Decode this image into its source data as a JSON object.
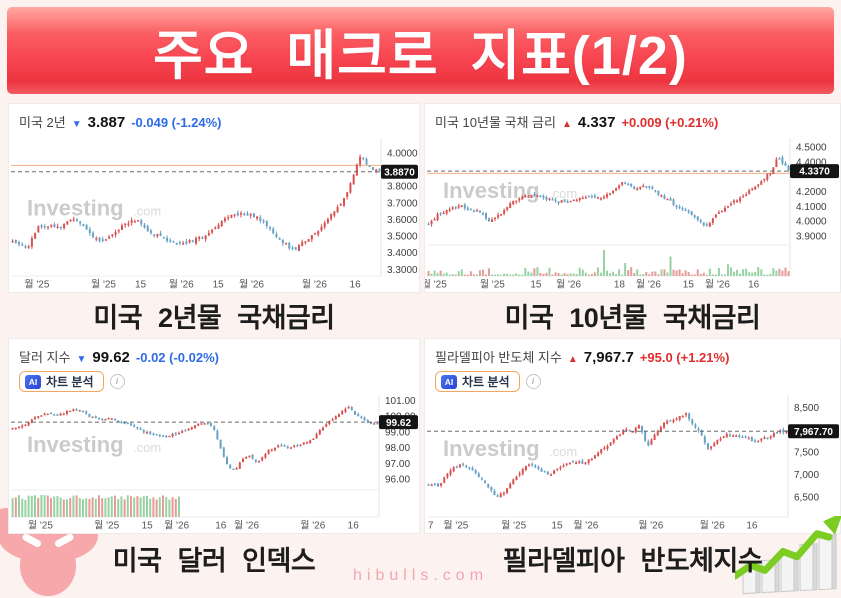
{
  "page": {
    "title": "주요 매크로 지표(1/2)",
    "footer": "hibulls.com"
  },
  "ai_button": {
    "badge": "AI",
    "label": "차트 분석",
    "info_glyph": "i"
  },
  "captions": [
    "미국 2년물 국채금리",
    "미국 10년물 국채금리",
    "미국 달러 인덱스",
    "필라델피아 반도체지수"
  ],
  "colors": {
    "up": "#d8504f",
    "down": "#67a1c5",
    "up_text": "#e02d2d",
    "down_text": "#2e6be6",
    "vol_up": "#97d2a2",
    "vol_down": "#e59b97",
    "badge_bg": "#141414",
    "price_line": "#6b6b6b",
    "ref_line": "#f4b183",
    "banner_red": "#f84853",
    "footer_pink": "#f3a6aa"
  },
  "chart_data": [
    {
      "type": "candlestick",
      "name": "us-2y-yield",
      "title": "미국 2년",
      "arrow": "▼",
      "direction": "down",
      "last_label": "3.887",
      "change": "-0.049 (-1.24%)",
      "last": 3.887,
      "badge": "3.8870",
      "ref": 3.925,
      "watermark": "Investing",
      "watermark2": ".com",
      "y_min": 3.26,
      "y_max": 4.09,
      "y_ticks": [
        {
          "v": 4.0,
          "label": "4.0000"
        },
        {
          "v": 3.8,
          "label": "3.8000"
        },
        {
          "v": 3.7,
          "label": "3.7000"
        },
        {
          "v": 3.6,
          "label": "3.6000"
        },
        {
          "v": 3.5,
          "label": "3.5000"
        },
        {
          "v": 3.4,
          "label": "3.4000"
        },
        {
          "v": 3.3,
          "label": "3.3000"
        }
      ],
      "x_ticks": [
        {
          "t": 0.07,
          "label": "월 '25"
        },
        {
          "t": 0.25,
          "label": "월 '25"
        },
        {
          "t": 0.35,
          "label": "15"
        },
        {
          "t": 0.46,
          "label": "월 '26"
        },
        {
          "t": 0.56,
          "label": "15"
        },
        {
          "t": 0.65,
          "label": "월 '26"
        },
        {
          "t": 0.82,
          "label": "월 '26"
        },
        {
          "t": 0.93,
          "label": "16"
        }
      ],
      "trend": [
        [
          0,
          3.47
        ],
        [
          0.04,
          3.43
        ],
        [
          0.07,
          3.55
        ],
        [
          0.1,
          3.57
        ],
        [
          0.13,
          3.55
        ],
        [
          0.16,
          3.6
        ],
        [
          0.19,
          3.57
        ],
        [
          0.22,
          3.49
        ],
        [
          0.25,
          3.47
        ],
        [
          0.28,
          3.53
        ],
        [
          0.31,
          3.58
        ],
        [
          0.34,
          3.6
        ],
        [
          0.37,
          3.53
        ],
        [
          0.41,
          3.49
        ],
        [
          0.45,
          3.45
        ],
        [
          0.49,
          3.47
        ],
        [
          0.53,
          3.51
        ],
        [
          0.56,
          3.57
        ],
        [
          0.59,
          3.62
        ],
        [
          0.63,
          3.64
        ],
        [
          0.66,
          3.62
        ],
        [
          0.69,
          3.57
        ],
        [
          0.72,
          3.5
        ],
        [
          0.75,
          3.44
        ],
        [
          0.77,
          3.42
        ],
        [
          0.8,
          3.48
        ],
        [
          0.83,
          3.53
        ],
        [
          0.86,
          3.6
        ],
        [
          0.89,
          3.68
        ],
        [
          0.91,
          3.74
        ],
        [
          0.93,
          3.88
        ],
        [
          0.95,
          3.99
        ],
        [
          0.97,
          3.92
        ],
        [
          1,
          3.89
        ]
      ],
      "axis_w": 38,
      "volume": "none",
      "volume_h": 0,
      "seed": 11,
      "n": 115,
      "amp": 0.022,
      "wm": 0.56
    },
    {
      "type": "candlestick",
      "name": "us-10y-yield",
      "title": "미국 10년물 국채 금리",
      "arrow": "▲",
      "direction": "up",
      "last_label": "4.337",
      "change": "+0.009 (+0.21%)",
      "last": 4.337,
      "badge": "4.3370",
      "ref": 4.322,
      "watermark": "Investing",
      "watermark2": ".com",
      "y_min": 3.84,
      "y_max": 4.56,
      "y_ticks": [
        {
          "v": 4.5,
          "label": "4.5000"
        },
        {
          "v": 4.4,
          "label": "4.4000"
        },
        {
          "v": 4.2,
          "label": "4.2000"
        },
        {
          "v": 4.1,
          "label": "4.1000"
        },
        {
          "v": 4.0,
          "label": "4.0000"
        },
        {
          "v": 3.9,
          "label": "3.9000"
        }
      ],
      "x_ticks": [
        {
          "t": 0.02,
          "label": "월 '25"
        },
        {
          "t": 0.18,
          "label": "월 '25"
        },
        {
          "t": 0.3,
          "label": "15"
        },
        {
          "t": 0.39,
          "label": "월 '26"
        },
        {
          "t": 0.53,
          "label": "18"
        },
        {
          "t": 0.61,
          "label": "월 '26"
        },
        {
          "t": 0.72,
          "label": "15"
        },
        {
          "t": 0.8,
          "label": "월 '26"
        },
        {
          "t": 0.9,
          "label": "16"
        }
      ],
      "trend": [
        [
          0,
          3.99
        ],
        [
          0.03,
          4.05
        ],
        [
          0.06,
          4.08
        ],
        [
          0.09,
          4.1
        ],
        [
          0.12,
          4.08
        ],
        [
          0.15,
          4.05
        ],
        [
          0.17,
          4.0
        ],
        [
          0.2,
          4.05
        ],
        [
          0.23,
          4.12
        ],
        [
          0.26,
          4.17
        ],
        [
          0.3,
          4.18
        ],
        [
          0.33,
          4.15
        ],
        [
          0.36,
          4.13
        ],
        [
          0.4,
          4.14
        ],
        [
          0.44,
          4.17
        ],
        [
          0.48,
          4.16
        ],
        [
          0.51,
          4.2
        ],
        [
          0.54,
          4.26
        ],
        [
          0.56,
          4.24
        ],
        [
          0.58,
          4.21
        ],
        [
          0.6,
          4.25
        ],
        [
          0.63,
          4.2
        ],
        [
          0.66,
          4.15
        ],
        [
          0.69,
          4.1
        ],
        [
          0.72,
          4.07
        ],
        [
          0.75,
          4.0
        ],
        [
          0.77,
          3.96
        ],
        [
          0.8,
          4.05
        ],
        [
          0.83,
          4.1
        ],
        [
          0.86,
          4.15
        ],
        [
          0.89,
          4.2
        ],
        [
          0.92,
          4.26
        ],
        [
          0.95,
          4.33
        ],
        [
          0.97,
          4.43
        ],
        [
          1,
          4.34
        ]
      ],
      "axis_w": 50,
      "volume": "full",
      "volume_h": 26,
      "v_spikes": [
        {
          "t": 0.49,
          "f": 1.0
        },
        {
          "t": 0.55,
          "f": 0.5
        },
        {
          "t": 0.67,
          "f": 0.75
        },
        {
          "t": 0.83,
          "f": 0.45
        }
      ],
      "seed": 23,
      "n": 120,
      "amp": 0.02,
      "wm": 0.56
    },
    {
      "type": "candlestick",
      "name": "dollar-index",
      "title": "달러 지수",
      "arrow": "▼",
      "direction": "down",
      "last_label": "99.62",
      "change": "-0.02 (-0.02%)",
      "last": 99.62,
      "badge": "99.62",
      "ref": null,
      "watermark": "Investing",
      "watermark2": ".com",
      "y_min": 95.3,
      "y_max": 101.35,
      "y_ticks": [
        {
          "v": 101.0,
          "label": "101.00"
        },
        {
          "v": 100.0,
          "label": "100.00"
        },
        {
          "v": 99.0,
          "label": "99.00"
        },
        {
          "v": 98.0,
          "label": "98.00"
        },
        {
          "v": 97.0,
          "label": "97.00"
        },
        {
          "v": 96.0,
          "label": "96.00"
        }
      ],
      "x_ticks": [
        {
          "t": 0.08,
          "label": "월 '25"
        },
        {
          "t": 0.26,
          "label": "월 '25"
        },
        {
          "t": 0.37,
          "label": "15"
        },
        {
          "t": 0.45,
          "label": "월 '26"
        },
        {
          "t": 0.57,
          "label": "16"
        },
        {
          "t": 0.64,
          "label": "월 '26"
        },
        {
          "t": 0.82,
          "label": "월 '26"
        },
        {
          "t": 0.93,
          "label": "16"
        }
      ],
      "trend": [
        [
          0,
          99.2
        ],
        [
          0.03,
          99.4
        ],
        [
          0.06,
          99.9
        ],
        [
          0.09,
          100.2
        ],
        [
          0.12,
          100.0
        ],
        [
          0.15,
          100.3
        ],
        [
          0.18,
          100.5
        ],
        [
          0.21,
          100.0
        ],
        [
          0.24,
          99.8
        ],
        [
          0.27,
          99.9
        ],
        [
          0.3,
          99.6
        ],
        [
          0.33,
          99.4
        ],
        [
          0.36,
          99.0
        ],
        [
          0.39,
          98.8
        ],
        [
          0.42,
          98.7
        ],
        [
          0.45,
          98.9
        ],
        [
          0.48,
          99.2
        ],
        [
          0.51,
          99.5
        ],
        [
          0.53,
          99.6
        ],
        [
          0.55,
          99.3
        ],
        [
          0.57,
          98.0
        ],
        [
          0.59,
          96.8
        ],
        [
          0.61,
          96.5
        ],
        [
          0.63,
          97.3
        ],
        [
          0.65,
          97.5
        ],
        [
          0.67,
          97.0
        ],
        [
          0.7,
          97.8
        ],
        [
          0.73,
          98.1
        ],
        [
          0.76,
          98.0
        ],
        [
          0.79,
          98.2
        ],
        [
          0.82,
          98.5
        ],
        [
          0.85,
          99.3
        ],
        [
          0.88,
          99.9
        ],
        [
          0.9,
          100.2
        ],
        [
          0.92,
          100.6
        ],
        [
          0.94,
          100.1
        ],
        [
          0.96,
          99.8
        ],
        [
          0.98,
          99.5
        ],
        [
          1,
          99.6
        ]
      ],
      "axis_w": 40,
      "volume": "partial",
      "volume_h": 22,
      "volume_span": 0.46,
      "seed": 37,
      "n": 115,
      "amp": 0.12,
      "wm": 0.6
    },
    {
      "type": "candlestick",
      "name": "philadelphia-semiconductor-index",
      "title": "필라델피아 반도체 지수",
      "arrow": "▲",
      "direction": "up",
      "last_label": "7,967.7",
      "change": "+95.0 (+1.21%)",
      "last": 7967.7,
      "badge": "7,967.70",
      "ref": null,
      "watermark": "Investing",
      "watermark2": ".com",
      "y_min": 6050,
      "y_max": 8780,
      "y_ticks": [
        {
          "v": 8500,
          "label": "8,500"
        },
        {
          "v": 7500,
          "label": "7,500"
        },
        {
          "v": 7000,
          "label": "7,000"
        },
        {
          "v": 6500,
          "label": "6,500"
        }
      ],
      "x_ticks": [
        {
          "t": 0.01,
          "label": "7"
        },
        {
          "t": 0.08,
          "label": "월 '25"
        },
        {
          "t": 0.24,
          "label": "월 '25"
        },
        {
          "t": 0.36,
          "label": "15"
        },
        {
          "t": 0.44,
          "label": "월 '26"
        },
        {
          "t": 0.62,
          "label": "월 '26"
        },
        {
          "t": 0.79,
          "label": "월 '26"
        },
        {
          "t": 0.9,
          "label": "16"
        }
      ],
      "trend": [
        [
          0,
          6800
        ],
        [
          0.03,
          6750
        ],
        [
          0.06,
          7100
        ],
        [
          0.09,
          7250
        ],
        [
          0.12,
          7100
        ],
        [
          0.15,
          6900
        ],
        [
          0.17,
          6700
        ],
        [
          0.19,
          6450
        ],
        [
          0.22,
          6700
        ],
        [
          0.25,
          7000
        ],
        [
          0.28,
          7250
        ],
        [
          0.31,
          7100
        ],
        [
          0.34,
          7000
        ],
        [
          0.37,
          7200
        ],
        [
          0.4,
          7300
        ],
        [
          0.43,
          7250
        ],
        [
          0.46,
          7400
        ],
        [
          0.49,
          7600
        ],
        [
          0.52,
          7800
        ],
        [
          0.55,
          8050
        ],
        [
          0.57,
          7950
        ],
        [
          0.59,
          8150
        ],
        [
          0.61,
          7600
        ],
        [
          0.63,
          7900
        ],
        [
          0.66,
          8150
        ],
        [
          0.69,
          8250
        ],
        [
          0.72,
          8350
        ],
        [
          0.74,
          8100
        ],
        [
          0.76,
          7900
        ],
        [
          0.78,
          7550
        ],
        [
          0.8,
          7700
        ],
        [
          0.83,
          7900
        ],
        [
          0.86,
          7850
        ],
        [
          0.89,
          7800
        ],
        [
          0.92,
          7750
        ],
        [
          0.95,
          7850
        ],
        [
          0.97,
          7950
        ],
        [
          1,
          7968
        ]
      ],
      "axis_w": 52,
      "volume": "none",
      "volume_h": 0,
      "seed": 51,
      "n": 115,
      "amp": 60,
      "wm": 0.5
    }
  ]
}
